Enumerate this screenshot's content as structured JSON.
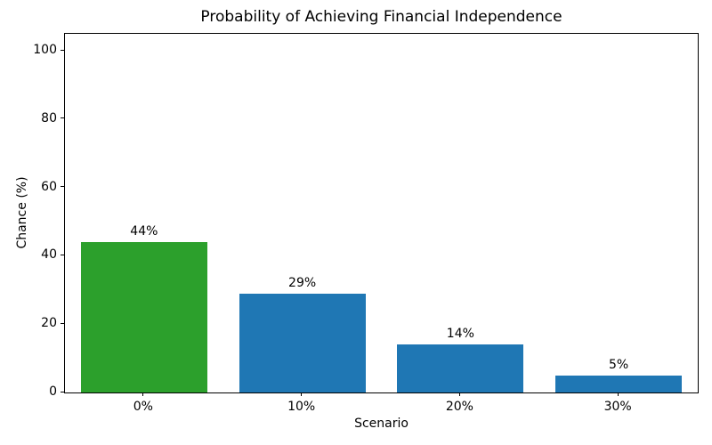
{
  "chart_data": {
    "type": "bar",
    "title": "Probability of Achieving Financial Independence",
    "xlabel": "Scenario",
    "ylabel": "Chance (%)",
    "categories": [
      "0%",
      "10%",
      "20%",
      "30%"
    ],
    "values": [
      44,
      29,
      14,
      5
    ],
    "bar_labels": [
      "44%",
      "29%",
      "14%",
      "5%"
    ],
    "bar_colors": [
      "#2ca02c",
      "#1f77b4",
      "#1f77b4",
      "#1f77b4"
    ],
    "ylim": [
      0,
      105
    ],
    "yticks": [
      0,
      20,
      40,
      60,
      80,
      100
    ],
    "grid": false,
    "legend": null,
    "bar_width_fraction": 0.8,
    "axis_color": "#000000",
    "text_color": "#000000",
    "background_color": "#ffffff"
  }
}
